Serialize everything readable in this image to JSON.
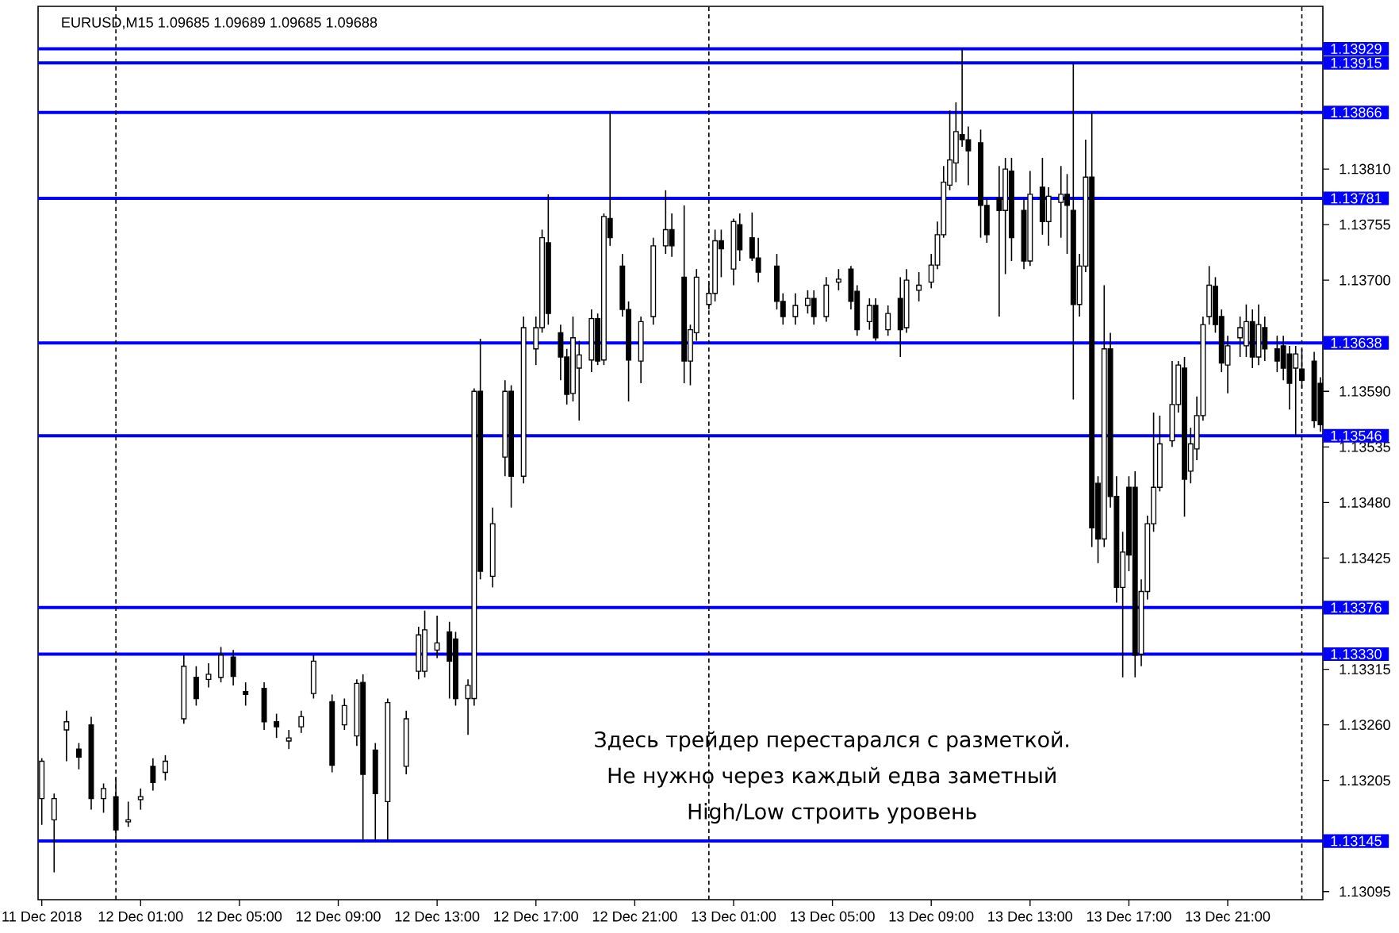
{
  "chart_data": {
    "type": "candlestick",
    "title": "EURUSD,M15  1.09685 1.09689 1.09685 1.09688",
    "annotations": [
      "Здесь трейдер перестарался с разметкой.",
      "Не нужно через каждый едва заметный",
      "High/Low строить уровень"
    ],
    "x": [
      "2018-12-11T21:00",
      "2018-12-11T21:30",
      "2018-12-11T22:00",
      "2018-12-11T22:30",
      "2018-12-11T23:00",
      "2018-12-11T23:30",
      "2018-12-12T00:00",
      "2018-12-12T00:30",
      "2018-12-12T01:00",
      "2018-12-12T01:30",
      "2018-12-12T02:00",
      "2018-12-12T02:45",
      "2018-12-12T03:15",
      "2018-12-12T03:45",
      "2018-12-12T04:15",
      "2018-12-12T04:45",
      "2018-12-12T05:15",
      "2018-12-12T06:00",
      "2018-12-12T06:30",
      "2018-12-12T07:00",
      "2018-12-12T07:30",
      "2018-12-12T08:00",
      "2018-12-12T08:45",
      "2018-12-12T09:15",
      "2018-12-12T09:45",
      "2018-12-12T10:00",
      "2018-12-12T10:30",
      "2018-12-12T11:00",
      "2018-12-12T11:45",
      "2018-12-12T12:15",
      "2018-12-12T12:30",
      "2018-12-12T13:00",
      "2018-12-12T13:30",
      "2018-12-12T13:45",
      "2018-12-12T14:15",
      "2018-12-12T14:30",
      "2018-12-12T14:45",
      "2018-12-12T15:15",
      "2018-12-12T15:45",
      "2018-12-12T16:00",
      "2018-12-12T16:30",
      "2018-12-12T17:00",
      "2018-12-12T17:15",
      "2018-12-12T17:30",
      "2018-12-12T18:00",
      "2018-12-12T18:15",
      "2018-12-12T18:30",
      "2018-12-12T18:45",
      "2018-12-12T19:15",
      "2018-12-12T19:30",
      "2018-12-12T19:45",
      "2018-12-12T20:00",
      "2018-12-12T20:30",
      "2018-12-12T20:45",
      "2018-12-12T21:15",
      "2018-12-12T21:45",
      "2018-12-12T22:15",
      "2018-12-12T22:30",
      "2018-12-12T23:00",
      "2018-12-12T23:15",
      "2018-12-12T23:30",
      "2018-12-13T00:00",
      "2018-12-13T00:15",
      "2018-12-13T00:30",
      "2018-12-13T01:00",
      "2018-12-13T01:15",
      "2018-12-13T01:45",
      "2018-12-13T02:00",
      "2018-12-13T02:45",
      "2018-12-13T03:00",
      "2018-12-13T03:30",
      "2018-12-13T04:00",
      "2018-12-13T04:15",
      "2018-12-13T04:45",
      "2018-12-13T05:15",
      "2018-12-13T05:45",
      "2018-12-13T06:00",
      "2018-12-13T06:30",
      "2018-12-13T06:45",
      "2018-12-13T07:15",
      "2018-12-13T07:45",
      "2018-12-13T08:00",
      "2018-12-13T08:30",
      "2018-12-13T09:00",
      "2018-12-13T09:15",
      "2018-12-13T09:30",
      "2018-12-13T09:45",
      "2018-12-13T10:00",
      "2018-12-13T10:15",
      "2018-12-13T10:30",
      "2018-12-13T11:00",
      "2018-12-13T11:15",
      "2018-12-13T11:45",
      "2018-12-13T12:00",
      "2018-12-13T12:15",
      "2018-12-13T12:45",
      "2018-12-13T13:00",
      "2018-12-13T13:30",
      "2018-12-13T13:45",
      "2018-12-13T14:15",
      "2018-12-13T14:30",
      "2018-12-13T14:45",
      "2018-12-13T15:00",
      "2018-12-13T15:15",
      "2018-12-13T15:30",
      "2018-12-13T15:45",
      "2018-12-13T16:00",
      "2018-12-13T16:15",
      "2018-12-13T16:30",
      "2018-12-13T16:45",
      "2018-12-13T17:00",
      "2018-12-13T17:15",
      "2018-12-13T17:30",
      "2018-12-13T17:45",
      "2018-12-13T18:00",
      "2018-12-13T18:15",
      "2018-12-13T18:45",
      "2018-12-13T19:00",
      "2018-12-13T19:15",
      "2018-12-13T19:30",
      "2018-12-13T19:45",
      "2018-12-13T20:00",
      "2018-12-13T20:15",
      "2018-12-13T20:30",
      "2018-12-13T20:45",
      "2018-12-13T21:00",
      "2018-12-13T21:30",
      "2018-12-13T21:45",
      "2018-12-13T22:00",
      "2018-12-13T22:15",
      "2018-12-13T22:30",
      "2018-12-13T23:00",
      "2018-12-13T23:15",
      "2018-12-13T23:30",
      "2018-12-13T23:45",
      "2018-12-14T00:00",
      "2018-12-14T00:30",
      "2018-12-14T00:45"
    ],
    "ohlc": [
      [
        1.13187,
        1.13227,
        1.13161,
        1.13224
      ],
      [
        1.13166,
        1.13192,
        1.13114,
        1.13187
      ],
      [
        1.13255,
        1.13274,
        1.13224,
        1.13263
      ],
      [
        1.13236,
        1.13242,
        1.13216,
        1.13228
      ],
      [
        1.1326,
        1.13268,
        1.13176,
        1.13187
      ],
      [
        1.13187,
        1.13202,
        1.13173,
        1.13197
      ],
      [
        1.13189,
        1.13208,
        1.13145,
        1.13156
      ],
      [
        1.13164,
        1.13184,
        1.13159,
        1.13166
      ],
      [
        1.13186,
        1.13197,
        1.13176,
        1.13189
      ],
      [
        1.13219,
        1.13227,
        1.13195,
        1.13203
      ],
      [
        1.13213,
        1.1323,
        1.13205,
        1.13224
      ],
      [
        1.13266,
        1.13329,
        1.13261,
        1.13318
      ],
      [
        1.13307,
        1.13318,
        1.13279,
        1.13286
      ],
      [
        1.13305,
        1.13321,
        1.13297,
        1.1331
      ],
      [
        1.13307,
        1.13337,
        1.13302,
        1.13329
      ],
      [
        1.13327,
        1.13334,
        1.13299,
        1.13308
      ],
      [
        1.13293,
        1.13302,
        1.13279,
        1.1329
      ],
      [
        1.13296,
        1.13302,
        1.13255,
        1.13263
      ],
      [
        1.13263,
        1.13271,
        1.13247,
        1.13258
      ],
      [
        1.13244,
        1.13255,
        1.13236,
        1.13247
      ],
      [
        1.13258,
        1.13274,
        1.13252,
        1.13268
      ],
      [
        1.13291,
        1.13329,
        1.13286,
        1.13323
      ],
      [
        1.13283,
        1.1329,
        1.13213,
        1.1322
      ],
      [
        1.1326,
        1.13286,
        1.13255,
        1.13279
      ],
      [
        1.13249,
        1.13305,
        1.13239,
        1.13301
      ],
      [
        1.13302,
        1.1331,
        1.13145,
        1.13211
      ],
      [
        1.13235,
        1.13242,
        1.13145,
        1.13192
      ],
      [
        1.13184,
        1.13286,
        1.13145,
        1.13282
      ],
      [
        1.13219,
        1.13274,
        1.13211,
        1.13266
      ],
      [
        1.13313,
        1.13357,
        1.13305,
        1.13349
      ],
      [
        1.13313,
        1.13373,
        1.13307,
        1.13354
      ],
      [
        1.13334,
        1.13368,
        1.13326,
        1.13341
      ],
      [
        1.13352,
        1.13362,
        1.13286,
        1.13323
      ],
      [
        1.13345,
        1.13352,
        1.13279,
        1.13286
      ],
      [
        1.13286,
        1.13305,
        1.1325,
        1.13299
      ],
      [
        1.13286,
        1.13593,
        1.13279,
        1.1359
      ],
      [
        1.1359,
        1.13642,
        1.13404,
        1.13412
      ],
      [
        1.13407,
        1.13475,
        1.13396,
        1.13459
      ],
      [
        1.13525,
        1.13601,
        1.13506,
        1.1359
      ],
      [
        1.1359,
        1.13596,
        1.13475,
        1.13506
      ],
      [
        1.13506,
        1.13664,
        1.13499,
        1.13653
      ],
      [
        1.13632,
        1.13664,
        1.13616,
        1.13653
      ],
      [
        1.13653,
        1.1375,
        1.13648,
        1.13742
      ],
      [
        1.13737,
        1.13785,
        1.13656,
        1.13667
      ],
      [
        1.13648,
        1.13656,
        1.13601,
        1.13624
      ],
      [
        1.13624,
        1.13632,
        1.13577,
        1.13587
      ],
      [
        1.13588,
        1.13664,
        1.1358,
        1.13643
      ],
      [
        1.13613,
        1.1364,
        1.13561,
        1.13626
      ],
      [
        1.13621,
        1.13671,
        1.13609,
        1.13662
      ],
      [
        1.13662,
        1.13667,
        1.13616,
        1.1362
      ],
      [
        1.13621,
        1.13766,
        1.13616,
        1.13763
      ],
      [
        1.13761,
        1.13866,
        1.13734,
        1.13742
      ],
      [
        1.13714,
        1.13726,
        1.13664,
        1.13671
      ],
      [
        1.13671,
        1.13679,
        1.1358,
        1.13621
      ],
      [
        1.1362,
        1.13664,
        1.13598,
        1.13659
      ],
      [
        1.13664,
        1.13742,
        1.13656,
        1.13734
      ],
      [
        1.13734,
        1.13789,
        1.13726,
        1.1375
      ],
      [
        1.1375,
        1.13766,
        1.13723,
        1.13734
      ],
      [
        1.13703,
        1.13774,
        1.13598,
        1.1362
      ],
      [
        1.1362,
        1.13656,
        1.13596,
        1.13651
      ],
      [
        1.13648,
        1.13711,
        1.1364,
        1.13703
      ],
      [
        1.13676,
        1.13698,
        1.13671,
        1.13687
      ],
      [
        1.13687,
        1.1375,
        1.13679,
        1.13739
      ],
      [
        1.13739,
        1.1375,
        1.13703,
        1.13731
      ],
      [
        1.13711,
        1.13761,
        1.13695,
        1.13758
      ],
      [
        1.13755,
        1.13766,
        1.13719,
        1.1373
      ],
      [
        1.13742,
        1.13767,
        1.13719,
        1.13722
      ],
      [
        1.13722,
        1.13742,
        1.13698,
        1.13708
      ],
      [
        1.13714,
        1.13726,
        1.13671,
        1.13679
      ],
      [
        1.13679,
        1.13687,
        1.13656,
        1.13664
      ],
      [
        1.13664,
        1.13687,
        1.13656,
        1.13675
      ],
      [
        1.13675,
        1.1369,
        1.13667,
        1.13682
      ],
      [
        1.13682,
        1.1369,
        1.13656,
        1.13664
      ],
      [
        1.13664,
        1.13703,
        1.13659,
        1.13695
      ],
      [
        1.13698,
        1.13711,
        1.1369,
        1.13701
      ],
      [
        1.13711,
        1.13714,
        1.13671,
        1.13679
      ],
      [
        1.13689,
        1.13695,
        1.13645,
        1.13651
      ],
      [
        1.13659,
        1.13682,
        1.13651,
        1.13675
      ],
      [
        1.13675,
        1.13682,
        1.1364,
        1.13643
      ],
      [
        1.13651,
        1.13675,
        1.13645,
        1.13667
      ],
      [
        1.13682,
        1.13703,
        1.13624,
        1.13651
      ],
      [
        1.13653,
        1.13711,
        1.13648,
        1.137
      ],
      [
        1.1369,
        1.13708,
        1.13679,
        1.13695
      ],
      [
        1.13698,
        1.13726,
        1.13692,
        1.13715
      ],
      [
        1.13715,
        1.13758,
        1.13711,
        1.13745
      ],
      [
        1.13745,
        1.13813,
        1.13742,
        1.13797
      ],
      [
        1.13794,
        1.13868,
        1.13789,
        1.13819
      ],
      [
        1.13816,
        1.13876,
        1.13797,
        1.13847
      ],
      [
        1.13844,
        1.13929,
        1.13832,
        1.13839
      ],
      [
        1.13839,
        1.13852,
        1.13794,
        1.13828
      ],
      [
        1.13836,
        1.13849,
        1.13742,
        1.13774
      ],
      [
        1.13774,
        1.13781,
        1.13737,
        1.13745
      ],
      [
        1.13781,
        1.13813,
        1.13664,
        1.13769
      ],
      [
        1.13769,
        1.13821,
        1.13706,
        1.1381
      ],
      [
        1.13808,
        1.13821,
        1.13719,
        1.13742
      ],
      [
        1.13769,
        1.13781,
        1.13711,
        1.13719
      ],
      [
        1.13719,
        1.13808,
        1.13714,
        1.13785
      ],
      [
        1.13792,
        1.13821,
        1.13745,
        1.13758
      ],
      [
        1.13758,
        1.13792,
        1.13734,
        1.13783
      ],
      [
        1.13777,
        1.13813,
        1.13742,
        1.13785
      ],
      [
        1.13785,
        1.13805,
        1.13726,
        1.13774
      ],
      [
        1.13769,
        1.13915,
        1.13582,
        1.13676
      ],
      [
        1.13676,
        1.13726,
        1.13664,
        1.13714
      ],
      [
        1.13714,
        1.13839,
        1.13708,
        1.13802
      ],
      [
        1.13802,
        1.13866,
        1.13436,
        1.13455
      ],
      [
        1.13499,
        1.13506,
        1.1342,
        1.13444
      ],
      [
        1.13444,
        1.13695,
        1.13436,
        1.13632
      ],
      [
        1.13632,
        1.13648,
        1.13475,
        1.13486
      ],
      [
        1.13486,
        1.13506,
        1.13381,
        1.13396
      ],
      [
        1.13396,
        1.13451,
        1.13307,
        1.13431
      ],
      [
        1.13495,
        1.13506,
        1.13412,
        1.13428
      ],
      [
        1.13495,
        1.13511,
        1.13307,
        1.13329
      ],
      [
        1.1333,
        1.13404,
        1.13318,
        1.13392
      ],
      [
        1.13392,
        1.13467,
        1.13384,
        1.13459
      ],
      [
        1.13459,
        1.13569,
        1.13451,
        1.13495
      ],
      [
        1.13495,
        1.13566,
        1.13491,
        1.13538
      ],
      [
        1.13541,
        1.1362,
        1.13535,
        1.13577
      ],
      [
        1.13577,
        1.1362,
        1.13569,
        1.13616
      ],
      [
        1.13613,
        1.13624,
        1.13466,
        1.13503
      ],
      [
        1.13511,
        1.13554,
        1.13499,
        1.13538
      ],
      [
        1.13533,
        1.13585,
        1.13522,
        1.13566
      ],
      [
        1.13566,
        1.13664,
        1.13561,
        1.13656
      ],
      [
        1.13664,
        1.13714,
        1.13656,
        1.13695
      ],
      [
        1.13694,
        1.13703,
        1.13648,
        1.13656
      ],
      [
        1.13664,
        1.13671,
        1.13609,
        1.13618
      ],
      [
        1.13616,
        1.13645,
        1.13588,
        1.13635
      ],
      [
        1.13643,
        1.13664,
        1.13624,
        1.13653
      ],
      [
        1.13635,
        1.13676,
        1.13624,
        1.13659
      ],
      [
        1.13659,
        1.13671,
        1.13613,
        1.13624
      ],
      [
        1.13624,
        1.13676,
        1.13616,
        1.13656
      ],
      [
        1.13653,
        1.13664,
        1.1362,
        1.13632
      ],
      [
        1.13632,
        1.13645,
        1.13609,
        1.1362
      ],
      [
        1.13635,
        1.13645,
        1.13601,
        1.13613
      ],
      [
        1.13627,
        1.13635,
        1.13572,
        1.13598
      ],
      [
        1.13613,
        1.13635,
        1.13546,
        1.13627
      ],
      [
        1.13612,
        1.13632,
        1.13593,
        1.13601
      ],
      [
        1.1362,
        1.13629,
        1.13554,
        1.13561
      ],
      [
        1.13598,
        1.13604,
        1.1355,
        1.13557
      ]
    ],
    "xlim": [
      "2018-12-11T20:51",
      "2018-12-14T00:51"
    ],
    "ylim": [
      1.13087,
      1.13971
    ],
    "xticks": [
      {
        "value": "2018-12-11T21:00",
        "label": "11 Dec 2018"
      },
      {
        "value": "2018-12-12T01:00",
        "label": "12 Dec 01:00"
      },
      {
        "value": "2018-12-12T05:00",
        "label": "12 Dec 05:00"
      },
      {
        "value": "2018-12-12T09:00",
        "label": "12 Dec 09:00"
      },
      {
        "value": "2018-12-12T13:00",
        "label": "12 Dec 13:00"
      },
      {
        "value": "2018-12-12T17:00",
        "label": "12 Dec 17:00"
      },
      {
        "value": "2018-12-12T21:00",
        "label": "12 Dec 21:00"
      },
      {
        "value": "2018-12-13T01:00",
        "label": "13 Dec 01:00"
      },
      {
        "value": "2018-12-13T05:00",
        "label": "13 Dec 05:00"
      },
      {
        "value": "2018-12-13T09:00",
        "label": "13 Dec 09:00"
      },
      {
        "value": "2018-12-13T13:00",
        "label": "13 Dec 13:00"
      },
      {
        "value": "2018-12-13T17:00",
        "label": "13 Dec 17:00"
      },
      {
        "value": "2018-12-13T21:00",
        "label": "13 Dec 21:00"
      }
    ],
    "yticks": [
      {
        "value": 1.1381,
        "label": "1.13810"
      },
      {
        "value": 1.13755,
        "label": "1.13755"
      },
      {
        "value": 1.137,
        "label": "1.13700"
      },
      {
        "value": 1.1359,
        "label": "1.13590"
      },
      {
        "value": 1.13535,
        "label": "1.13535"
      },
      {
        "value": 1.1348,
        "label": "1.13480"
      },
      {
        "value": 1.13425,
        "label": "1.13425"
      },
      {
        "value": 1.13315,
        "label": "1.13315"
      },
      {
        "value": 1.1326,
        "label": "1.13260"
      },
      {
        "value": 1.13205,
        "label": "1.13205"
      },
      {
        "value": 1.13095,
        "label": "1.13095"
      }
    ],
    "ref_lines": [
      {
        "axis": "y",
        "value": 1.13929,
        "label": "1.13929",
        "color": "#0000ff"
      },
      {
        "axis": "y",
        "value": 1.13915,
        "label": "1.13915",
        "color": "#0000ff"
      },
      {
        "axis": "y",
        "value": 1.13866,
        "label": "1.13866",
        "color": "#0000ff"
      },
      {
        "axis": "y",
        "value": 1.13781,
        "label": "1.13781",
        "color": "#0000ff"
      },
      {
        "axis": "y",
        "value": 1.13638,
        "label": "1.13638",
        "color": "#0000ff"
      },
      {
        "axis": "y",
        "value": 1.13546,
        "label": "1.13546",
        "color": "#0000ff"
      },
      {
        "axis": "y",
        "value": 1.13376,
        "label": "1.13376",
        "color": "#0000ff"
      },
      {
        "axis": "y",
        "value": 1.1333,
        "label": "1.13330",
        "color": "#0000ff"
      },
      {
        "axis": "y",
        "value": 1.13145,
        "label": "1.13145",
        "color": "#0000ff"
      },
      {
        "axis": "x",
        "value": "2018-12-12T00:00",
        "color": "#000000",
        "line_style": "dashed"
      },
      {
        "axis": "x",
        "value": "2018-12-13T00:00",
        "color": "#000000",
        "line_style": "dashed"
      },
      {
        "axis": "x",
        "value": "2018-12-14T00:00",
        "color": "#000000",
        "line_style": "dashed"
      }
    ]
  }
}
